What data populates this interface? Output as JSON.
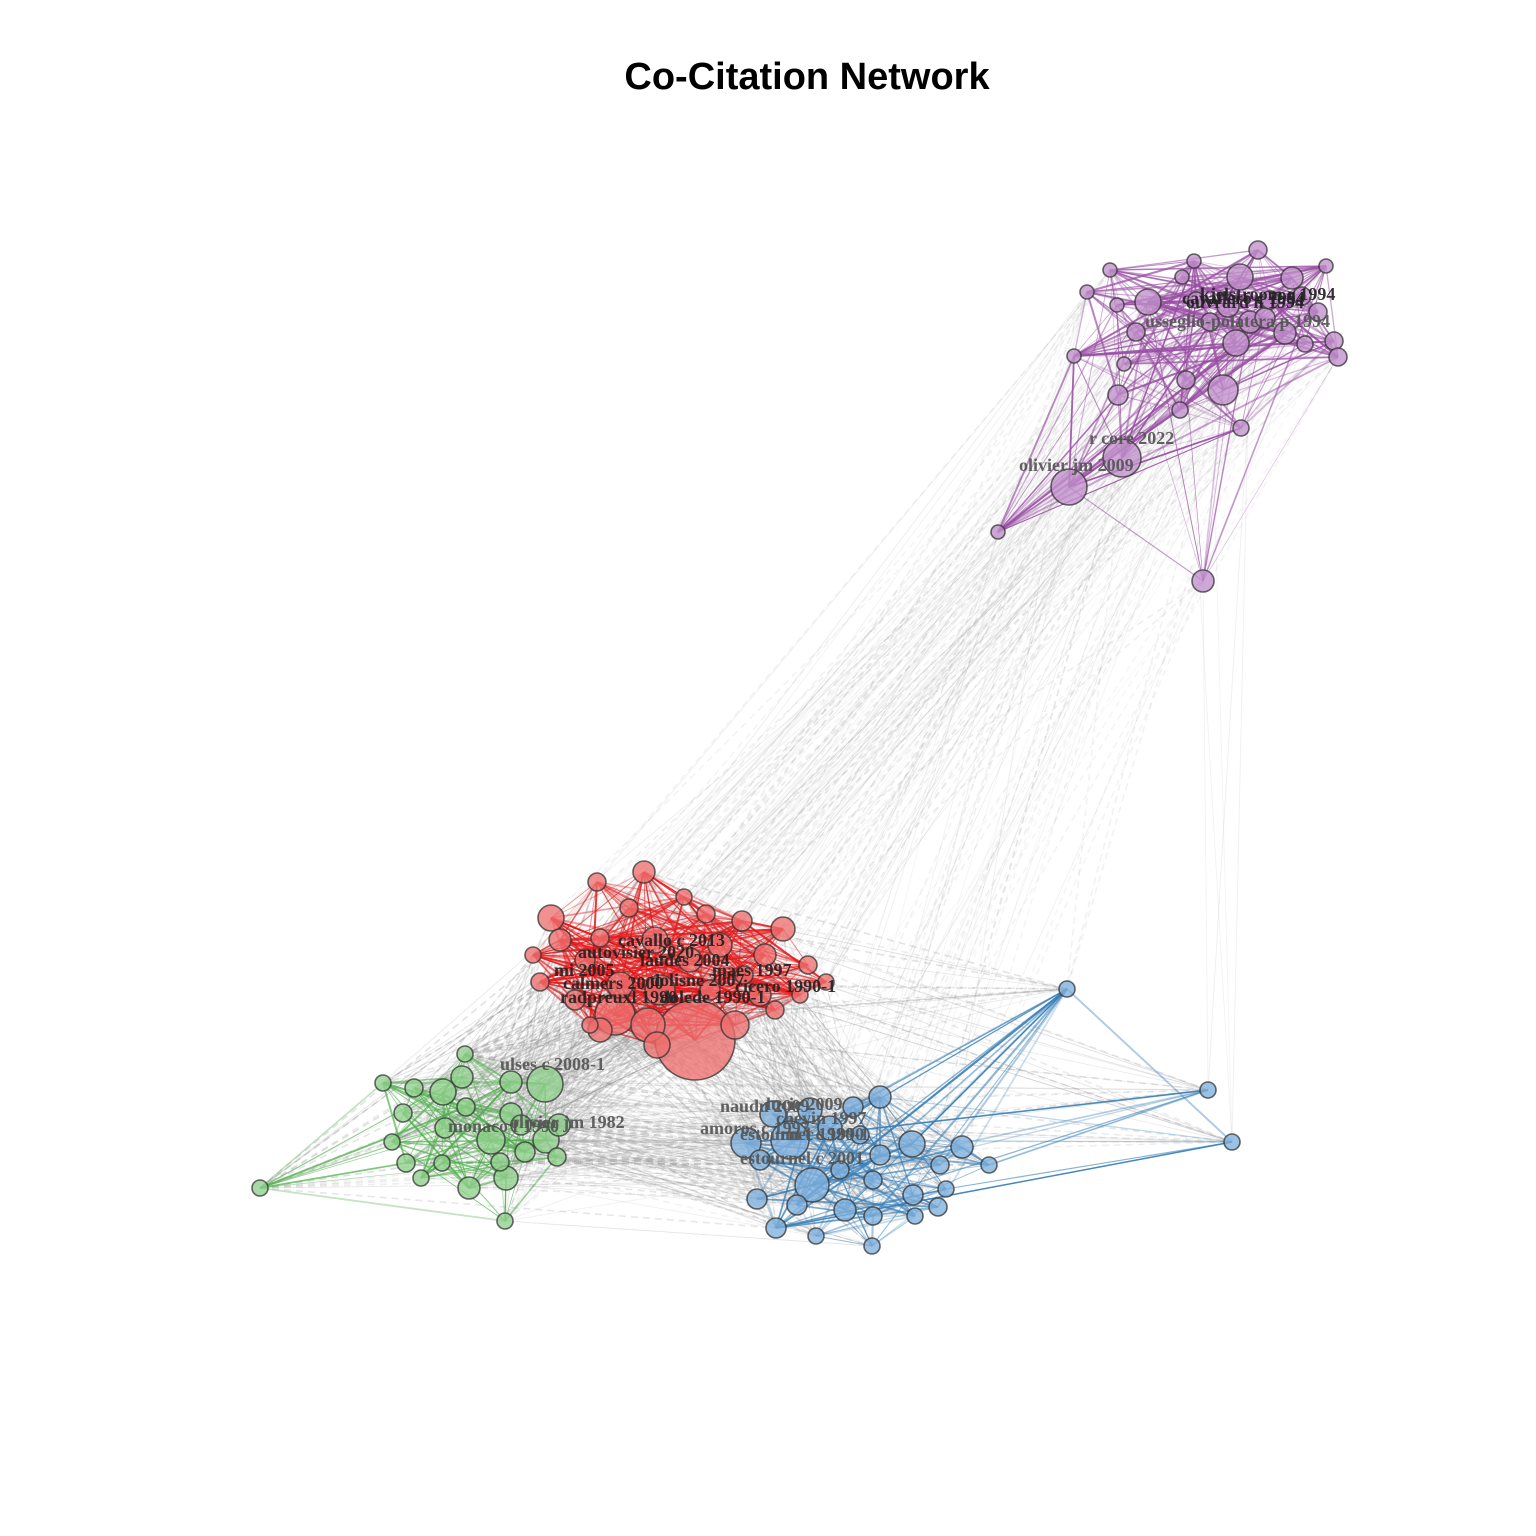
{
  "title": "Co-Citation Network",
  "clusters": [
    {
      "id": "purple",
      "color": "#984ea3",
      "fill": "#c08fcb",
      "labels": [
        "cavallero c 1994",
        "ouvrard n 1994",
        "kjelstroom r 1994",
        "usseglio-polatera p 1994",
        "r core 2022",
        "olivier jm 2009"
      ]
    },
    {
      "id": "red",
      "color": "#e41a1c",
      "fill": "#ee6f70",
      "labels": [
        "cavallo c 2013",
        "autovisier 2020",
        "laudes 2004",
        "maes 1997",
        "mi 2005",
        "calmers 2000",
        "dolisne 2007",
        "cicero 1990-1",
        "radpreuxl 1990",
        "dolede 1990-1"
      ]
    },
    {
      "id": "green",
      "color": "#4daf4a",
      "fill": "#8fd08c",
      "labels": [
        "ulses c 2008-1",
        "monaco f 1990",
        "olivier jm 1982"
      ]
    },
    {
      "id": "blue",
      "color": "#377eb8",
      "fill": "#7fb0dc",
      "labels": [
        "naudu 2009",
        "chevin 1997",
        "lucie 2009",
        "amoros c 1997",
        "estournel c 1990",
        "mt c 1990-1",
        "estournel c 2001"
      ]
    }
  ]
}
